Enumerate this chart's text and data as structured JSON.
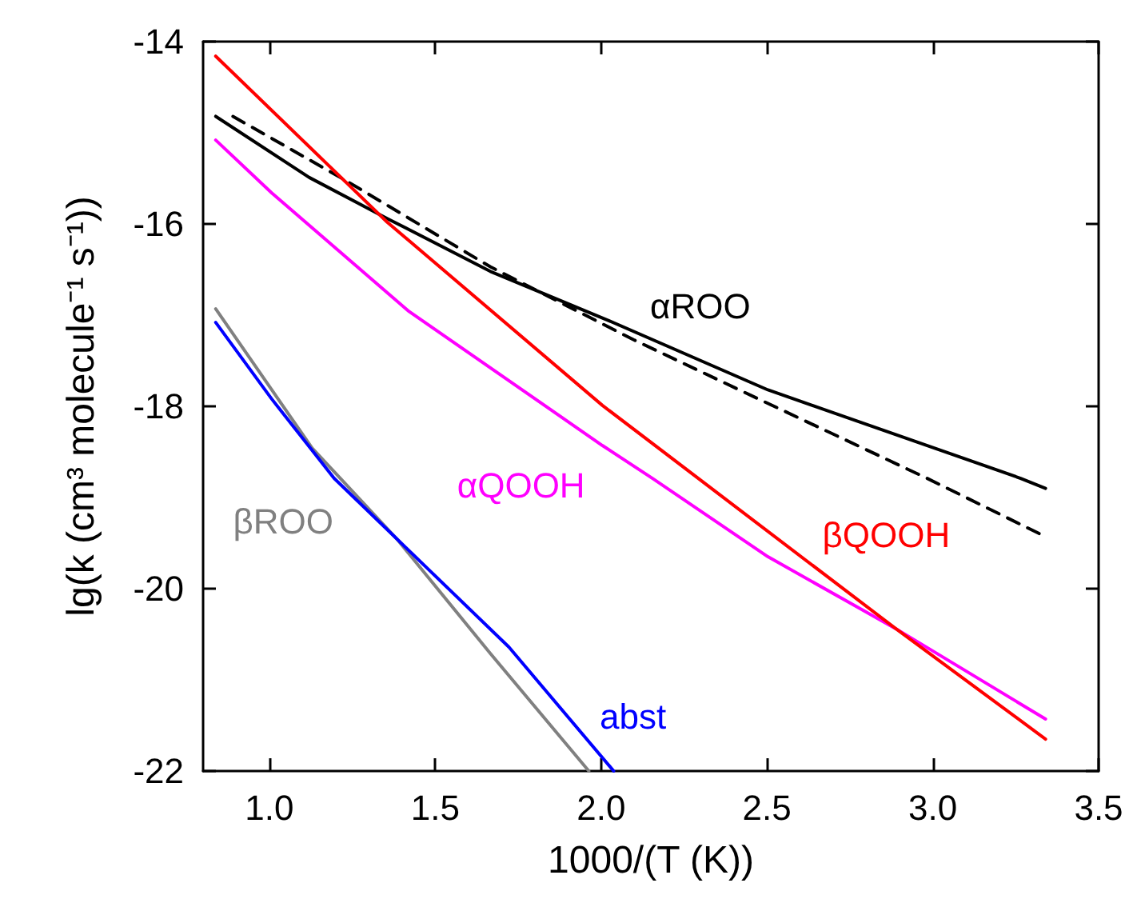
{
  "chart_data": {
    "type": "line",
    "xlabel": "1000/(T (K))",
    "ylabel": "lg(k (cm³ molecule⁻¹ s⁻¹))",
    "xlim": [
      0.8,
      3.5
    ],
    "ylim": [
      -22,
      -14
    ],
    "xticks": [
      {
        "value": 1,
        "label": "1.0"
      },
      {
        "value": 1.5,
        "label": "1.5"
      },
      {
        "value": 2,
        "label": "2.0"
      },
      {
        "value": 2.5,
        "label": "2.5"
      },
      {
        "value": 3,
        "label": "3.0"
      },
      {
        "value": 3.5,
        "label": "3.5"
      }
    ],
    "yticks": [
      -22,
      -20,
      -18,
      -16,
      -14
    ],
    "grid": false,
    "marker": "none",
    "series": [
      {
        "name": "αROO",
        "color": "#000000",
        "line_style": "solid",
        "x": [
          0.838,
          1.12,
          1.355,
          1.666,
          2.023,
          2.503,
          3.265,
          3.34
        ],
        "values": [
          -14.82,
          -15.49,
          -15.94,
          -16.52,
          -17.06,
          -17.82,
          -18.79,
          -18.9
        ]
      },
      {
        "color": "#000000",
        "line_style": "dashed",
        "x": [
          0.89,
          1.233,
          1.666,
          2.098,
          2.475,
          2.983,
          3.34
        ],
        "values": [
          -14.82,
          -15.53,
          -16.47,
          -17.27,
          -17.92,
          -18.79,
          -19.43
        ]
      },
      {
        "name": "αQOOH",
        "color": "#ff00ff",
        "line_style": "solid",
        "x": [
          0.838,
          1.007,
          1.421,
          2.004,
          2.155,
          2.503,
          2.889,
          3.34
        ],
        "values": [
          -15.08,
          -15.66,
          -16.96,
          -18.43,
          -18.79,
          -19.65,
          -20.44,
          -21.43
        ]
      },
      {
        "name": "βQOOH",
        "color": "#ff0000",
        "line_style": "solid",
        "x": [
          0.838,
          1.355,
          2.004,
          2.889,
          3.34
        ],
        "values": [
          -14.16,
          -15.98,
          -17.99,
          -20.44,
          -21.65
        ]
      },
      {
        "name": "βROO",
        "color": "#808080",
        "line_style": "solid",
        "x": [
          0.838,
          1.129,
          1.214,
          1.383,
          1.666,
          1.963
        ],
        "values": [
          -16.93,
          -18.46,
          -18.79,
          -19.45,
          -20.71,
          -22
        ]
      },
      {
        "name": "abst",
        "color": "#0000ff",
        "line_style": "solid",
        "x": [
          0.838,
          1.007,
          1.195,
          1.383,
          1.722,
          2.038
        ],
        "values": [
          -17.08,
          -17.92,
          -18.79,
          -19.45,
          -20.64,
          -22
        ]
      }
    ]
  }
}
